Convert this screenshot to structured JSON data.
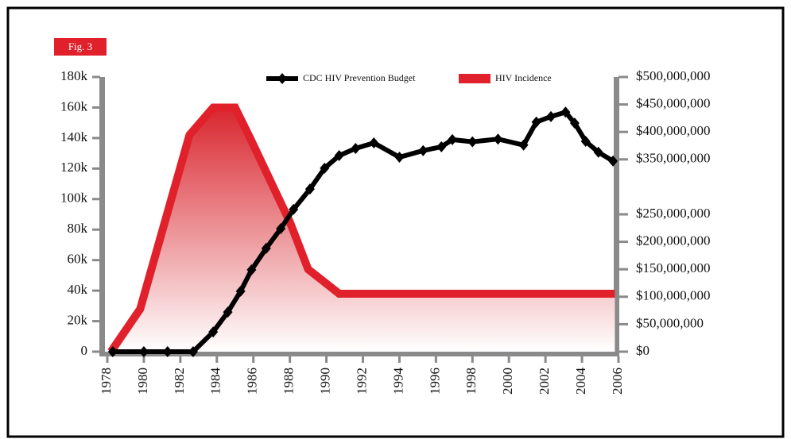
{
  "chart_data": {
    "type": "line",
    "label": "Fig. 3",
    "legend": "top",
    "xlim": [
      1978,
      2006
    ],
    "xticks": [
      1978,
      1980,
      1982,
      1984,
      1986,
      1988,
      1990,
      1992,
      1994,
      1996,
      1998,
      2000,
      2002,
      2004,
      2006
    ],
    "ylim": [
      0,
      180000
    ],
    "yticks": [
      0,
      {
        "value": 20000,
        "label": "20k"
      },
      {
        "value": 40000,
        "label": "40k"
      },
      {
        "value": 60000,
        "label": "60k"
      },
      {
        "value": 80000,
        "label": "80k"
      },
      {
        "value": 100000,
        "label": "100k"
      },
      {
        "value": 120000,
        "label": "120k"
      },
      {
        "value": 140000,
        "label": "140k"
      },
      {
        "value": 160000,
        "label": "160k"
      },
      {
        "value": 180000,
        "label": "180k"
      }
    ],
    "y2lim": [
      0,
      500000000
    ],
    "y2ticks": [
      {
        "value": 0,
        "label": "$0"
      },
      {
        "value": 50000000,
        "label": "$50,000,000"
      },
      {
        "value": 100000000,
        "label": "$100,000,000"
      },
      {
        "value": 150000000,
        "label": "$150,000,000"
      },
      {
        "value": 200000000,
        "label": "$200,000,000"
      },
      {
        "value": 250000000,
        "label": "$250,000,000"
      },
      {
        "value": 350000000,
        "label": "$350,000,000"
      },
      {
        "value": 400000000,
        "label": "$400,000,000"
      },
      {
        "value": 450000000,
        "label": "$450,000,000"
      },
      {
        "value": 500000000,
        "label": "$500,000,000"
      }
    ],
    "series": [
      {
        "name": "CDC HIV Prevention Budget",
        "color": "#000000",
        "axis": "y2",
        "markers": true,
        "x": [
          1978.3,
          1980,
          1981.3,
          1982.7,
          1983.8,
          1984.6,
          1985.3,
          1985.9,
          1986.7,
          1987.5,
          1988.2,
          1989.1,
          1989.9,
          1990.7,
          1991.6,
          1992.6,
          1994,
          1995.3,
          1996.3,
          1996.9,
          1998,
          1999.4,
          2000.8,
          2001.5,
          2002.3,
          2003.1,
          2003.6,
          2004.2,
          2004.9,
          2005.7
        ],
        "values": [
          0,
          0,
          0,
          0,
          36000000,
          72000000,
          110000000,
          149000000,
          188000000,
          224000000,
          259000000,
          296000000,
          334000000,
          357000000,
          370000000,
          380000000,
          354000000,
          366000000,
          373000000,
          386000000,
          382000000,
          387000000,
          376000000,
          418000000,
          428000000,
          436000000,
          416000000,
          383000000,
          363000000,
          347000000
        ]
      },
      {
        "name": "HIV Incidence",
        "color": "#e0202a",
        "axis": "y",
        "markers": false,
        "fill": true,
        "x": [
          1978.2,
          1979.8,
          1982.5,
          1983.8,
          1985.0,
          1985.9,
          1988.0,
          1989.0,
          1990.7,
          2005.8
        ],
        "values": [
          0,
          28000,
          142000,
          160000,
          160000,
          138000,
          85000,
          54000,
          38000,
          38000
        ]
      }
    ]
  }
}
